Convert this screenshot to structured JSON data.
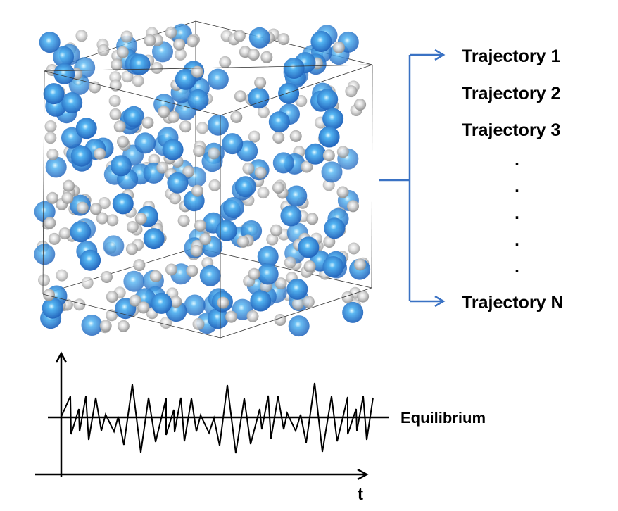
{
  "trajectories": {
    "items": [
      "Trajectory 1",
      "Trajectory 2",
      "Trajectory 3"
    ],
    "dots": [
      ".",
      ".",
      ".",
      ".",
      "."
    ],
    "last": "Trajectory N"
  },
  "plot": {
    "equilibrium_label": "Equilibrium",
    "x_axis_label": "t"
  },
  "colors": {
    "large_atom": "#2f7fd8",
    "small_atom": "#c8c8c8",
    "arrow": "#3a72c4",
    "box_edge": "#333333"
  }
}
